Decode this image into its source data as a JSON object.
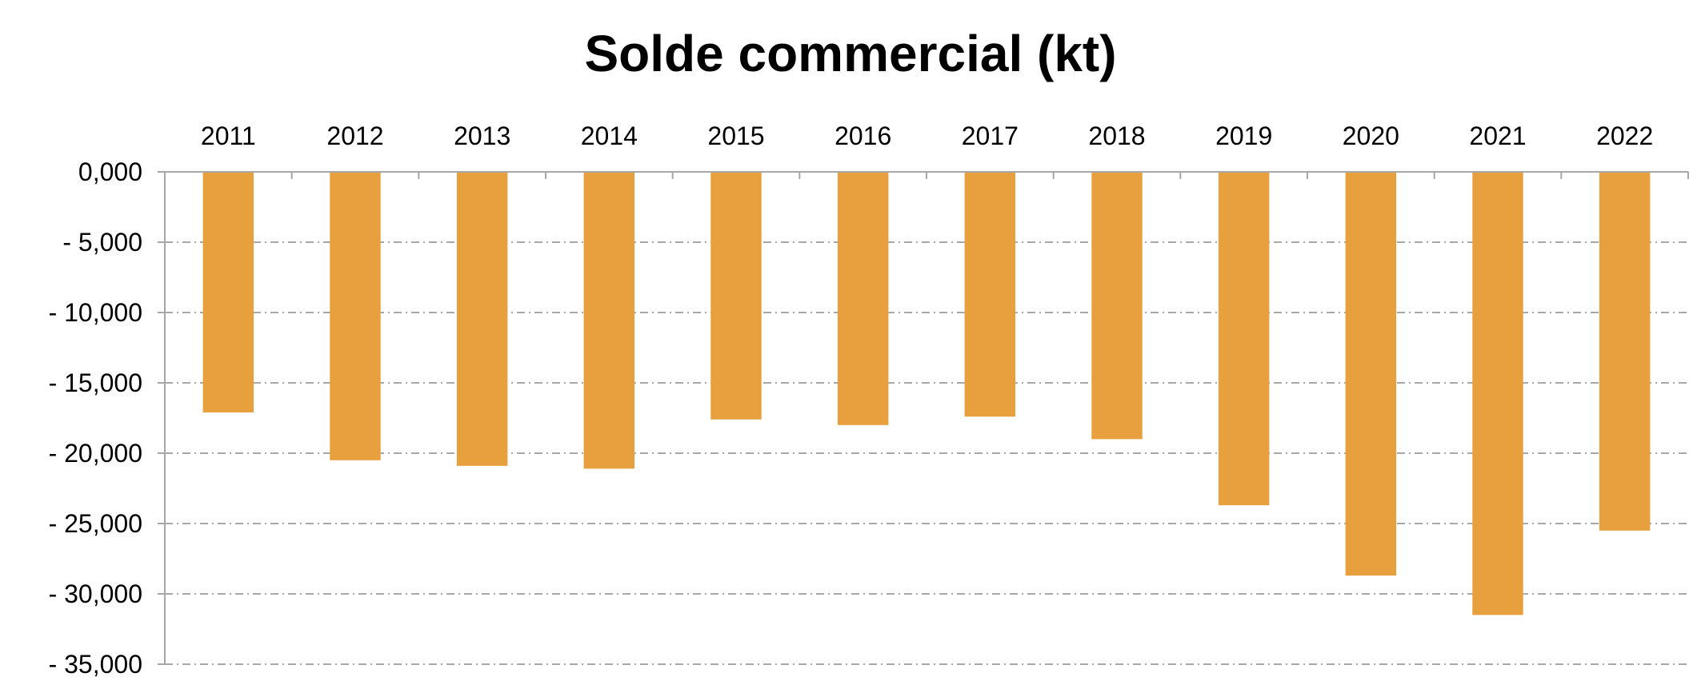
{
  "chart_data": {
    "type": "bar",
    "title": "Solde commercial (kt)",
    "xlabel": "",
    "ylabel": "",
    "categories": [
      "2011",
      "2012",
      "2013",
      "2014",
      "2015",
      "2016",
      "2017",
      "2018",
      "2019",
      "2020",
      "2021",
      "2022"
    ],
    "series": [
      {
        "name": "Solde commercial",
        "values": [
          -17100,
          -20500,
          -20900,
          -21100,
          -17600,
          -18000,
          -17400,
          -19000,
          -23700,
          -28700,
          -31500,
          -25500
        ]
      }
    ],
    "ylim": [
      -35000,
      0
    ],
    "yticks": [
      0,
      -5000,
      -10000,
      -15000,
      -20000,
      -25000,
      -30000,
      -35000
    ],
    "ytick_labels": [
      "0,000",
      "- 5,000",
      "- 10,000",
      "- 15,000",
      "- 20,000",
      "- 25,000",
      "- 30,000",
      "- 35,000"
    ],
    "x_axis_position": "top",
    "grid": true,
    "legend": false
  },
  "colors": {
    "bar": "#E8A03E",
    "grid": "#8c8c8c",
    "axis": "#a6a6a6",
    "text": "#000000"
  }
}
